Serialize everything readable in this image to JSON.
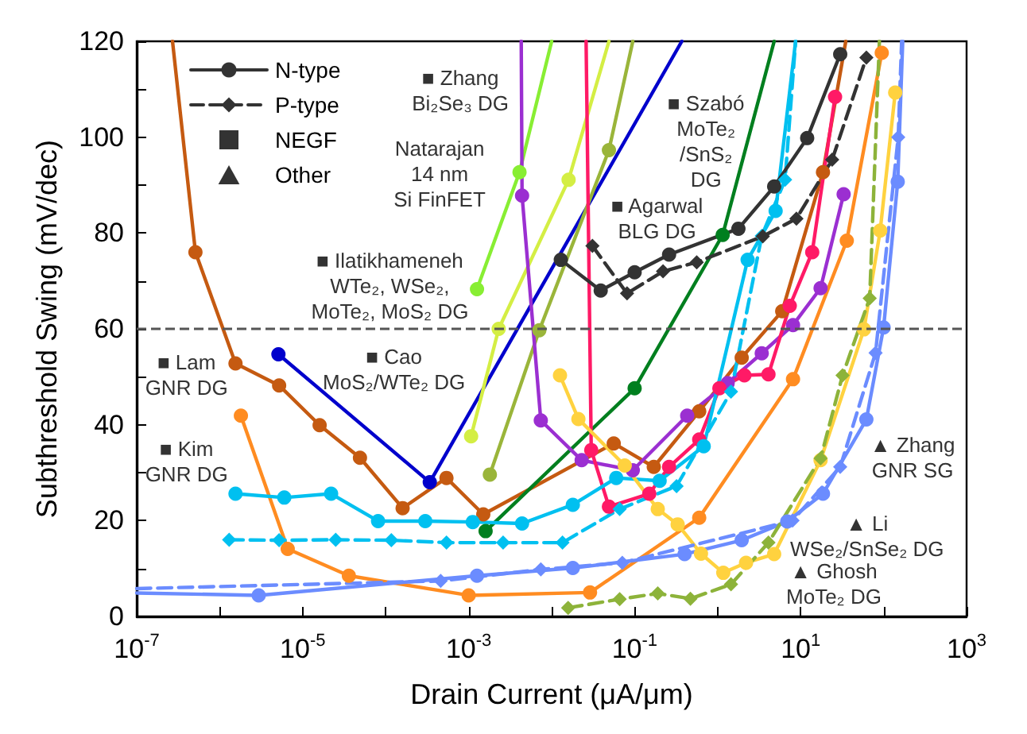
{
  "chart_data": {
    "type": "line",
    "xlabel": "Drain Current (μA/μm)",
    "ylabel": "Subthreshold Swing (mV/dec)",
    "log": "x",
    "grid": false,
    "legend": "top left",
    "xlim": [
      1e-07,
      1000
    ],
    "ylim": [
      0,
      120
    ],
    "xticks": [
      {
        "value": 1e-07,
        "label": "10$^{-7}$"
      },
      {
        "value": 1e-06,
        "label": null
      },
      {
        "value": 1e-05,
        "label": "10$^{-5}$"
      },
      {
        "value": 0.0001,
        "label": null
      },
      {
        "value": 0.001,
        "label": "10$^{-3}$"
      },
      {
        "value": 0.01,
        "label": null
      },
      {
        "value": 0.1,
        "label": "10$^{-1}$"
      },
      {
        "value": 1,
        "label": null
      },
      {
        "value": 10,
        "label": "10$^{1}$"
      },
      {
        "value": 100,
        "label": null
      },
      {
        "value": 1000,
        "label": "10$^{3}$"
      }
    ],
    "yticks": [
      0,
      {
        "value": 10,
        "label": null
      },
      20,
      {
        "value": 30,
        "label": null
      },
      40,
      {
        "value": 50,
        "label": null
      },
      60,
      {
        "value": 70,
        "label": null
      },
      80,
      {
        "value": 90,
        "label": null
      },
      100,
      {
        "value": 110,
        "label": null
      },
      120
    ],
    "ref_lines": [
      {
        "axis": "y",
        "value": 60,
        "color": "#555555",
        "line_style": "dashed"
      }
    ],
    "series": [
      {
        "name": "N-type",
        "type": "line",
        "color": "#333333",
        "marker": "circle",
        "line_style": "solid"
      },
      {
        "name": "P-type",
        "type": "line",
        "color": "#333333",
        "marker": "diamond",
        "line_style": "dashed"
      },
      {
        "name": "NEGF",
        "type": "scatter",
        "color": "#000000",
        "marker": "square"
      },
      {
        "name": "Other",
        "type": "scatter",
        "color": "#000000",
        "marker": "triangle"
      },
      {
        "color": "#c55a11",
        "marker": "circle",
        "line_style": "solid",
        "x": [
          2.7e-07,
          5.1e-07,
          1.55e-06,
          5.2e-06,
          1.6e-05,
          4.9e-05,
          0.00016,
          0.00054,
          0.0015,
          0.056,
          0.17,
          0.6,
          1.95,
          6.0,
          18.6,
          35
        ],
        "values": [
          120,
          76,
          52.8,
          48.2,
          39.9,
          33.1,
          22.6,
          28.9,
          21.3,
          36.1,
          31.2,
          42.8,
          54.0,
          63.7,
          92.7,
          120
        ]
      },
      {
        "color": "#ff8c21",
        "marker": "circle",
        "line_style": "solid",
        "x": [
          1.8e-06,
          6.6e-06,
          3.6e-05,
          0.001,
          0.029,
          0.6,
          8.1,
          36,
          95
        ],
        "values": [
          41.9,
          14.1,
          8.5,
          4.4,
          5.0,
          20.6,
          49.5,
          78.4,
          117.6
        ]
      },
      {
        "color": "#0000cc",
        "marker": "circle",
        "line_style": "solid",
        "x": [
          5.1e-06,
          0.00034,
          0.37
        ],
        "values": [
          54.7,
          28.0,
          120
        ]
      },
      {
        "color": "#007f1f",
        "marker": "circle",
        "line_style": "solid",
        "x": [
          0.0016,
          0.1,
          1.15,
          4.8
        ],
        "values": [
          17.8,
          47.6,
          79.6,
          120
        ]
      },
      {
        "color": "#9ab53a",
        "marker": "circle",
        "line_style": "solid",
        "x": [
          0.0018,
          0.0071,
          0.049,
          0.095
        ],
        "values": [
          29.6,
          59.7,
          97.3,
          120
        ]
      },
      {
        "color": "#d4ee44",
        "marker": "circle",
        "line_style": "solid",
        "x": [
          0.00107,
          0.0023,
          0.016,
          0.049
        ],
        "values": [
          37.6,
          60.0,
          91.1,
          120
        ]
      },
      {
        "color": "#88ee33",
        "marker": "circle",
        "line_style": "solid",
        "x": [
          0.00126,
          0.0041,
          0.01
        ],
        "values": [
          68.3,
          92.7,
          120
        ]
      },
      {
        "color": "#9b2fd1",
        "marker": "circle",
        "line_style": "solid",
        "x": [
          0.0043,
          0.0044,
          0.0074,
          0.023,
          0.095,
          0.43,
          1.32,
          3.4,
          8.1,
          17.4,
          33
        ],
        "values": [
          120,
          87.8,
          40.9,
          32.6,
          30.5,
          41.9,
          48.7,
          54.9,
          60.8,
          68.5,
          88.1
        ]
      },
      {
        "color": "#ff1a66",
        "marker": "circle",
        "line_style": "solid",
        "x": [
          0.026,
          0.03,
          0.049,
          0.15,
          0.26,
          0.6,
          1.05,
          2.1,
          4.1,
          7.4,
          13.8,
          26
        ],
        "values": [
          120,
          34.7,
          22.9,
          25.6,
          31.2,
          36.9,
          47.6,
          50.3,
          50.5,
          64.8,
          76.0,
          108.4
        ]
      },
      {
        "color": "#00c0f0",
        "marker": "circle",
        "line_style": "solid",
        "x": [
          1.55e-06,
          6e-06,
          2.2e-05,
          8.1e-05,
          0.0003,
          0.00112,
          0.0044,
          0.018,
          0.06,
          0.2,
          0.68,
          2.3,
          5.0,
          8.7
        ],
        "values": [
          25.6,
          24.8,
          25.6,
          19.9,
          19.9,
          19.7,
          19.4,
          23.3,
          28.9,
          28.3,
          35.5,
          74.4,
          84.6,
          120
        ]
      },
      {
        "color": "#00c0f0",
        "marker": "diamond",
        "line_style": "dashed",
        "x": [
          1.3e-06,
          5.2e-06,
          2.5e-05,
          0.000117,
          0.00054,
          0.0026,
          0.0135,
          0.066,
          0.32,
          1.45,
          3.4,
          6.5,
          8.7
        ],
        "values": [
          16.0,
          15.9,
          16.0,
          15.9,
          15.4,
          15.4,
          15.4,
          22.4,
          27.2,
          46.9,
          79.4,
          91.1,
          120
        ]
      },
      {
        "color": "#333333",
        "marker": "circle",
        "line_style": "solid",
        "x": [
          0.0129,
          0.039,
          0.1,
          0.26,
          1.78,
          4.8,
          12,
          30
        ],
        "values": [
          74.4,
          68.0,
          71.8,
          75.5,
          80.9,
          89.7,
          99.8,
          117.3
        ]
      },
      {
        "color": "#333333",
        "marker": "diamond",
        "line_style": "dashed",
        "x": [
          0.031,
          0.081,
          0.22,
          0.56,
          3.5,
          8.9,
          24,
          62
        ],
        "values": [
          77.3,
          67.4,
          72.0,
          73.9,
          79.3,
          83.0,
          95.3,
          116.6
        ]
      },
      {
        "color": "#ffd23f",
        "marker": "circle",
        "line_style": "solid",
        "x": [
          0.0126,
          0.021,
          0.076,
          0.19,
          0.33,
          0.63,
          1.17,
          2.2,
          4.8,
          17.4,
          58,
          91,
          138
        ],
        "values": [
          50.3,
          41.2,
          31.5,
          22.4,
          19.2,
          13.1,
          9.1,
          11.2,
          13.0,
          32.6,
          59.9,
          80.5,
          109.3
        ]
      },
      {
        "color": "#6b8cff",
        "marker": "circle",
        "line_style": "solid",
        "x": [
          1e-07,
          2.95e-06,
          0.00126,
          0.018,
          0.4,
          1.95,
          6.9,
          18.6,
          62,
          100,
          148,
          170
        ],
        "values": [
          4.9,
          4.4,
          8.5,
          10.1,
          13.0,
          15.9,
          19.8,
          25.6,
          41.1,
          60.3,
          90.7,
          120
        ]
      },
      {
        "color": "#6b8cff",
        "marker": "diamond",
        "line_style": "dashed",
        "x": [
          1e-07,
          0.00046,
          0.0074,
          0.071,
          8,
          30,
          80,
          150,
          165
        ],
        "values": [
          5.8,
          7.4,
          9.8,
          11.2,
          20,
          31.2,
          55,
          100,
          120
        ]
      },
      {
        "color": "#8db33a",
        "marker": "diamond",
        "line_style": "dashed",
        "x": [
          0.0158,
          0.066,
          0.19,
          0.47,
          1.45,
          4.1,
          17.4,
          32,
          68,
          89
        ],
        "values": [
          1.8,
          3.6,
          4.8,
          3.7,
          6.7,
          15.4,
          33,
          50.3,
          66.4,
          120
        ]
      }
    ],
    "annotations": [
      "■ Lam\nGNR DG",
      "■ Kim\nGNR DG",
      "■ Cao\nMoS₂/WTe₂ DG",
      "■ Ilatikhameneh\nWTe₂, WSe₂,\nMoTe₂, MoS₂ DG",
      "Natarajan\n14 nm\nSi FinFET",
      "■ Zhang\nBi₂Se₃ DG",
      "■ Szabó\nMoTe₂\n/SnS₂\nDG",
      "■ Agarwal\nBLG DG",
      "▲ Zhang\nGNR SG",
      "▲ Li\nWSe₂/SnSe₂ DG",
      "▲ Ghosh\nMoTe₂ DG"
    ]
  }
}
